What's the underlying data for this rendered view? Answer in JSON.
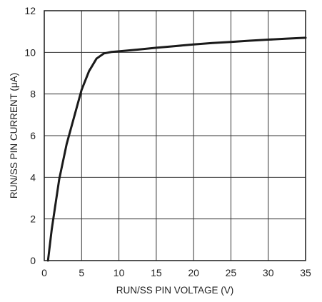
{
  "chart_data": {
    "type": "line",
    "title": "",
    "xlabel": "RUN/SS PIN VOLTAGE (V)",
    "ylabel": "RUN/SS PIN CURRENT (μA)",
    "xlim": [
      0,
      35
    ],
    "ylim": [
      0,
      12
    ],
    "xticks": [
      0,
      5,
      10,
      15,
      20,
      25,
      30,
      35
    ],
    "yticks": [
      0,
      2,
      4,
      6,
      8,
      10,
      12
    ],
    "grid": true,
    "legend": "none",
    "line_color": "#1a1a1a",
    "series": [
      {
        "x": [
          0.5,
          1.0,
          2.0,
          3.0,
          4.0,
          5.0,
          6.0,
          7.0,
          8.0,
          9.0,
          10.0,
          12.5,
          15.0,
          17.5,
          20.0,
          22.5,
          25.0,
          27.5,
          30.0,
          32.5,
          35.0
        ],
        "y": [
          0.0,
          1.5,
          3.9,
          5.6,
          6.9,
          8.2,
          9.1,
          9.7,
          9.95,
          10.02,
          10.05,
          10.13,
          10.22,
          10.3,
          10.38,
          10.45,
          10.5,
          10.56,
          10.61,
          10.66,
          10.7
        ]
      }
    ]
  }
}
